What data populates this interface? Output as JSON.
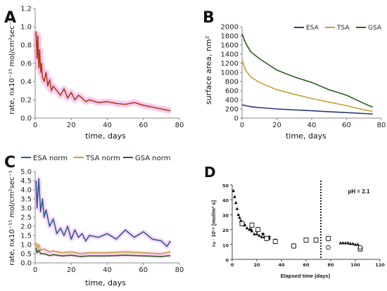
{
  "chart_data": [
    {
      "panel_label": "A",
      "type": "line",
      "xlabel": "time, days",
      "ylabel": "rate, nx10⁻¹⁵ mol/cm²sec⁻¹",
      "xlim": [
        0,
        80
      ],
      "ylim": [
        0,
        1.2
      ],
      "xticks": [
        "0",
        "20",
        "40",
        "60",
        "80"
      ],
      "yticks": [
        "0.0",
        "0.2",
        "0.4",
        "0.6",
        "0.8",
        "1.0",
        "1.2"
      ],
      "colors": {
        "line": "#b23a18",
        "band": "#f4a0e6"
      },
      "series": [
        {
          "x": [
            0.5,
            1,
            1.5,
            2,
            2.5,
            3,
            3.5,
            4,
            5,
            6,
            7,
            8,
            9,
            10,
            12,
            14,
            16,
            18,
            20,
            22,
            24,
            26,
            28,
            30,
            35,
            40,
            45,
            50,
            55,
            60,
            65,
            70,
            75
          ],
          "y": [
            0.95,
            0.65,
            0.9,
            0.55,
            0.75,
            0.5,
            0.6,
            0.45,
            0.4,
            0.5,
            0.35,
            0.42,
            0.3,
            0.35,
            0.3,
            0.25,
            0.32,
            0.22,
            0.28,
            0.2,
            0.25,
            0.22,
            0.18,
            0.2,
            0.17,
            0.18,
            0.16,
            0.15,
            0.17,
            0.14,
            0.12,
            0.1,
            0.08
          ]
        }
      ]
    },
    {
      "panel_label": "B",
      "type": "line",
      "xlabel": "time, days",
      "ylabel": "surface area, nm²",
      "xlim": [
        0,
        80
      ],
      "ylim": [
        0,
        2000
      ],
      "xticks": [
        "0",
        "20",
        "40",
        "60",
        "80"
      ],
      "yticks": [
        "0",
        "200",
        "400",
        "600",
        "800",
        "1000",
        "1200",
        "1400",
        "1600",
        "1800",
        "2000"
      ],
      "legend": "top-right",
      "series": [
        {
          "name": "ESA",
          "color": "#2c3a7e",
          "x": [
            0,
            5,
            10,
            20,
            30,
            40,
            50,
            60,
            70,
            75
          ],
          "y": [
            290,
            250,
            230,
            200,
            180,
            160,
            140,
            120,
            100,
            90
          ]
        },
        {
          "name": "TSA",
          "color": "#c8a032",
          "x": [
            0,
            2,
            5,
            10,
            20,
            30,
            40,
            50,
            60,
            70,
            75
          ],
          "y": [
            1280,
            1050,
            900,
            780,
            620,
            520,
            430,
            350,
            270,
            180,
            150
          ]
        },
        {
          "name": "GSA",
          "color": "#2e5e22",
          "x": [
            0,
            2,
            5,
            10,
            20,
            30,
            40,
            50,
            60,
            70,
            75
          ],
          "y": [
            1850,
            1650,
            1450,
            1300,
            1050,
            900,
            780,
            620,
            500,
            320,
            240
          ]
        }
      ]
    },
    {
      "panel_label": "C",
      "type": "line",
      "xlabel": "time, days",
      "ylabel": "rate, nx10⁻¹⁵ mol/cm²sec⁻¹",
      "xlim": [
        0,
        80
      ],
      "ylim": [
        0,
        5.0
      ],
      "xticks": [
        "0",
        "20",
        "40",
        "60",
        "80"
      ],
      "yticks": [
        "0.0",
        "0.5",
        "1.0",
        "1.5",
        "2.0",
        "2.5",
        "3.0",
        "3.5",
        "4.0",
        "4.5",
        "5.0"
      ],
      "legend": "top",
      "band_color": "#f4a0e6",
      "series": [
        {
          "name": "ESA norm",
          "color": "#2c5a96",
          "x": [
            0.5,
            1,
            2,
            3,
            4,
            5,
            6,
            8,
            10,
            12,
            14,
            16,
            18,
            20,
            22,
            24,
            26,
            28,
            30,
            35,
            40,
            45,
            50,
            55,
            60,
            65,
            70,
            73,
            75
          ],
          "y": [
            4.5,
            3.0,
            4.6,
            2.8,
            3.5,
            2.5,
            2.9,
            2.0,
            2.4,
            1.6,
            1.9,
            1.5,
            2.0,
            1.3,
            1.8,
            1.4,
            1.6,
            1.2,
            1.5,
            1.4,
            1.6,
            1.3,
            1.8,
            1.4,
            1.7,
            1.3,
            1.2,
            0.9,
            1.2
          ]
        },
        {
          "name": "TSA norm",
          "color": "#c8a032",
          "x": [
            0.5,
            1,
            2,
            3,
            5,
            8,
            10,
            15,
            20,
            25,
            30,
            40,
            50,
            60,
            70,
            75
          ],
          "y": [
            1.1,
            0.8,
            1.0,
            0.7,
            0.75,
            0.6,
            0.65,
            0.55,
            0.6,
            0.5,
            0.55,
            0.55,
            0.6,
            0.55,
            0.5,
            0.6
          ]
        },
        {
          "name": "GSA norm",
          "color": "#2e5e22",
          "x": [
            0.5,
            1,
            2,
            3,
            5,
            8,
            10,
            15,
            20,
            25,
            30,
            40,
            50,
            60,
            70,
            75
          ],
          "y": [
            0.8,
            0.55,
            0.7,
            0.5,
            0.5,
            0.4,
            0.45,
            0.38,
            0.42,
            0.35,
            0.38,
            0.38,
            0.42,
            0.38,
            0.35,
            0.4
          ]
        }
      ]
    },
    {
      "panel_label": "D",
      "type": "scatter",
      "xlabel": "Elapsed time (days)",
      "ylabel": "rₛᵢ · 10¹⁴ [mol/m² s]",
      "xlim": [
        0,
        120
      ],
      "ylim": [
        0,
        50
      ],
      "xticks": [
        "0",
        "20",
        "40",
        "60",
        "80",
        "100",
        "120"
      ],
      "yticks": [
        "0",
        "10",
        "20",
        "30",
        "40",
        "50"
      ],
      "annotation": "pH = 2.1",
      "vline_x": 72,
      "series": [
        {
          "marker": "triangle",
          "x": [
            1,
            2,
            3,
            4,
            5,
            6,
            7,
            8,
            9,
            10,
            12,
            14,
            16,
            18,
            20,
            22,
            24,
            26,
            28,
            30
          ],
          "y": [
            46,
            42,
            38,
            34,
            30,
            28,
            26,
            25,
            24,
            23,
            21,
            20,
            19,
            17,
            17,
            16,
            15,
            15,
            14,
            14
          ]
        },
        {
          "marker": "diamond",
          "x": [
            10,
            15,
            20,
            25,
            30,
            35
          ],
          "y": [
            23,
            20,
            19,
            17,
            15,
            13
          ]
        },
        {
          "marker": "square",
          "x": [
            8,
            16,
            21,
            28,
            35,
            50,
            60,
            68,
            78,
            104
          ],
          "y": [
            24,
            23,
            20,
            14,
            12,
            9,
            13,
            13,
            14,
            7
          ]
        },
        {
          "marker": "circle",
          "x": [
            78,
            104
          ],
          "y": [
            8,
            8
          ]
        },
        {
          "marker": "triangle",
          "x": [
            88,
            90,
            92,
            94,
            96,
            98,
            100,
            102
          ],
          "y": [
            11,
            11,
            11,
            11,
            10.5,
            10.5,
            10,
            10
          ]
        }
      ]
    }
  ]
}
